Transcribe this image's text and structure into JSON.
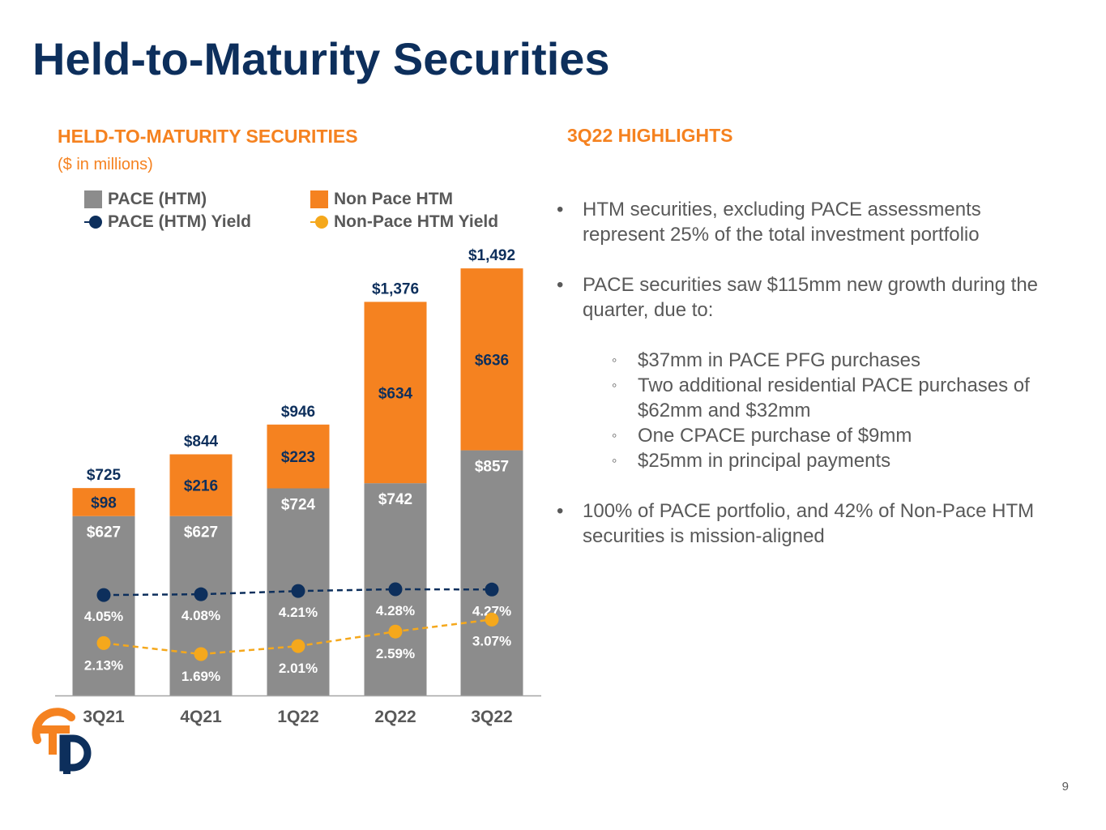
{
  "title": "Held-to-Maturity Securities",
  "left_section": {
    "title": "HELD-TO-MATURITY SECURITIES",
    "subtitle": "($ in millions)"
  },
  "right_section": {
    "title": "3Q22 HIGHLIGHTS",
    "bullets": [
      "HTM securities, excluding PACE assessments represent 25% of the total investment portfolio",
      "PACE securities saw $115mm new growth during the quarter, due to:",
      "100% of PACE portfolio, and 42% of Non-Pace HTM securities is mission-aligned"
    ],
    "sub_bullets": [
      "$37mm in PACE PFG purchases",
      "Two additional residential PACE purchases of $62mm and $32mm",
      "One CPACE purchase of $9mm",
      "$25mm in principal payments"
    ]
  },
  "legend": {
    "pace": "PACE (HTM)",
    "non_pace": "Non Pace HTM",
    "pace_yield": "PACE (HTM) Yield",
    "non_pace_yield": "Non-Pace HTM Yield"
  },
  "colors": {
    "navy": "#0d2f5c",
    "orange": "#f58220",
    "gray": "#8c8c8c",
    "yellow": "#f5a81c",
    "text_gray": "#595959"
  },
  "chart_data": {
    "type": "bar",
    "stacked": true,
    "categories": [
      "3Q21",
      "4Q21",
      "1Q22",
      "2Q22",
      "3Q22"
    ],
    "series": [
      {
        "name": "PACE (HTM)",
        "values": [
          627,
          627,
          724,
          742,
          857
        ],
        "labels": [
          "$627",
          "$627",
          "$724",
          "$742",
          "$857"
        ]
      },
      {
        "name": "Non Pace HTM",
        "values": [
          98,
          216,
          223,
          634,
          636
        ],
        "labels": [
          "$98",
          "$216",
          "$223",
          "$634",
          "$636"
        ]
      }
    ],
    "totals": [
      725,
      844,
      946,
      1376,
      1492
    ],
    "total_labels": [
      "$725",
      "$844",
      "$946",
      "$1,376",
      "$1,492"
    ],
    "lines": [
      {
        "name": "PACE (HTM) Yield",
        "values": [
          4.05,
          4.08,
          4.21,
          4.28,
          4.27
        ],
        "labels": [
          "4.05%",
          "4.08%",
          "4.21%",
          "4.28%",
          "4.27%"
        ]
      },
      {
        "name": "Non-Pace HTM Yield",
        "values": [
          2.13,
          1.69,
          2.01,
          2.59,
          3.07
        ],
        "labels": [
          "2.13%",
          "1.69%",
          "2.01%",
          "2.59%",
          "3.07%"
        ]
      }
    ],
    "legend": "top",
    "grid": false
  },
  "page_number": "9"
}
